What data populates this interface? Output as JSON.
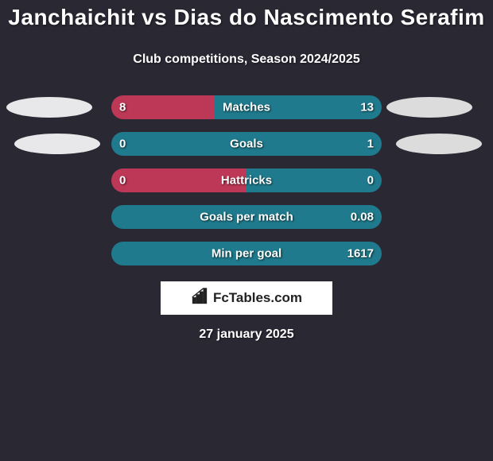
{
  "background_color": "#2a2833",
  "title": "Janchaichit vs Dias do Nascimento Serafim",
  "subtitle": "Club competitions, Season 2024/2025",
  "bar": {
    "track_width": 340,
    "track_height": 30,
    "left_color": "#bc3856",
    "right_color": "#1e7a8c",
    "text_color": "#ffffff"
  },
  "oval": {
    "width": 108,
    "height": 26,
    "left_color": "#e8e8ea",
    "right_color": "#dcdcdc"
  },
  "rows": [
    {
      "metric": "Matches",
      "left_raw": 8,
      "right_raw": 13,
      "left_disp": "8",
      "right_disp": "13",
      "left_pct": 38.1,
      "show_left_oval": true,
      "show_right_oval": true,
      "oval_left_x": 8,
      "oval_right_x": 486
    },
    {
      "metric": "Goals",
      "left_raw": 0,
      "right_raw": 1,
      "left_disp": "0",
      "right_disp": "1",
      "left_pct": 0.0,
      "show_left_oval": true,
      "show_right_oval": true,
      "oval_left_x": 18,
      "oval_right_x": 498
    },
    {
      "metric": "Hattricks",
      "left_raw": 0,
      "right_raw": 0,
      "left_disp": "0",
      "right_disp": "0",
      "left_pct": 50.0,
      "show_left_oval": false,
      "show_right_oval": false
    },
    {
      "metric": "Goals per match",
      "left_raw": 0,
      "right_raw": 0.08,
      "left_disp": "",
      "right_disp": "0.08",
      "left_pct": 0.0,
      "show_left_oval": false,
      "show_right_oval": false
    },
    {
      "metric": "Min per goal",
      "left_raw": 0,
      "right_raw": 1617,
      "left_disp": "",
      "right_disp": "1617",
      "left_pct": 0.0,
      "show_left_oval": false,
      "show_right_oval": false
    }
  ],
  "branding": "FcTables.com",
  "date": "27 january 2025"
}
